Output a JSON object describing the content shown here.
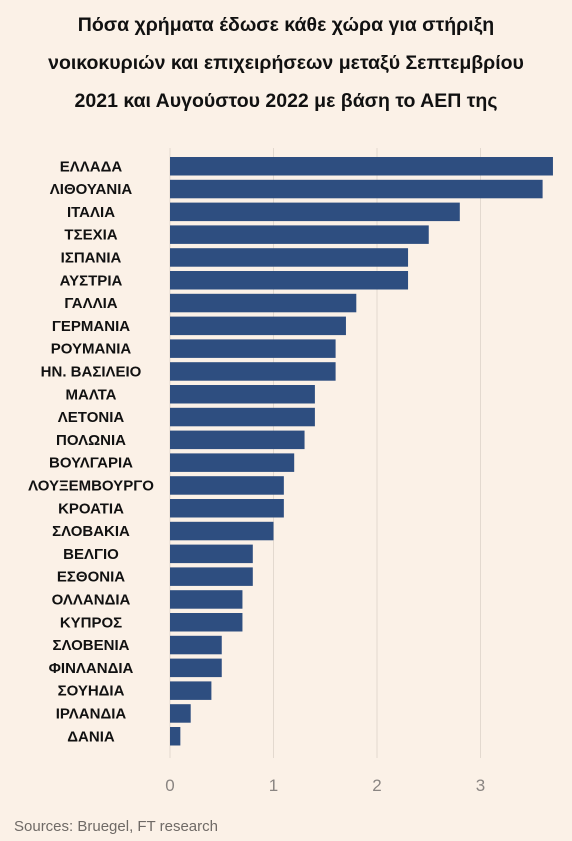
{
  "chart_data": {
    "type": "bar",
    "orientation": "horizontal",
    "title_lines": [
      "Πόσα χρήματα έδωσε κάθε χώρα για στήριξη",
      "νοικοκυριών και επιχειρήσεων μεταξύ Σεπτεμβρίου",
      "2021 και Αυγούστου 2022 με βάση το ΑΕΠ της"
    ],
    "categories": [
      "ΕΛΛΑΔΑ",
      "ΛΙΘΟΥΑΝΙΑ",
      "ΙΤΑΛΙΑ",
      "ΤΣΕΧΙΑ",
      "ΙΣΠΑΝΙΑ",
      "ΑΥΣΤΡΙΑ",
      "ΓΑΛΛΙΑ",
      "ΓΕΡΜΑΝΙΑ",
      "ΡΟΥΜΑΝΙΑ",
      "ΗΝ. ΒΑΣΙΛΕΙΟ",
      "ΜΑΛΤΑ",
      "ΛΕΤΟΝΙΑ",
      "ΠΟΛΩΝΙΑ",
      "ΒΟΥΛΓΑΡΙΑ",
      "ΛΟΥΞΕΜΒΟΥΡΓΟ",
      "ΚΡΟΑΤΙΑ",
      "ΣΛΟΒΑΚΙΑ",
      "ΒΕΛΓΙΟ",
      "ΕΣΘΟΝΙΑ",
      "ΟΛΛΑΝΔΙΑ",
      "ΚΥΠΡΟΣ",
      "ΣΛΟΒΕΝΙΑ",
      "ΦΙΝΛΑΝΔΙΑ",
      "ΣΟΥΗΔΙΑ",
      "ΙΡΛΑΝΔΙΑ",
      "ΔΑΝΙΑ"
    ],
    "values": [
      3.7,
      3.6,
      2.8,
      2.5,
      2.3,
      2.3,
      1.8,
      1.7,
      1.6,
      1.6,
      1.4,
      1.4,
      1.3,
      1.2,
      1.1,
      1.1,
      1.0,
      0.8,
      0.8,
      0.7,
      0.7,
      0.5,
      0.5,
      0.4,
      0.2,
      0.1
    ],
    "xticks": [
      "0",
      "1",
      "2",
      "3"
    ],
    "xlim": [
      0,
      3.75
    ],
    "grid": true,
    "bar_color": "#2e4e80",
    "grid_color": "#e3d9cf",
    "source": "Sources: Bruegel, FT research"
  }
}
